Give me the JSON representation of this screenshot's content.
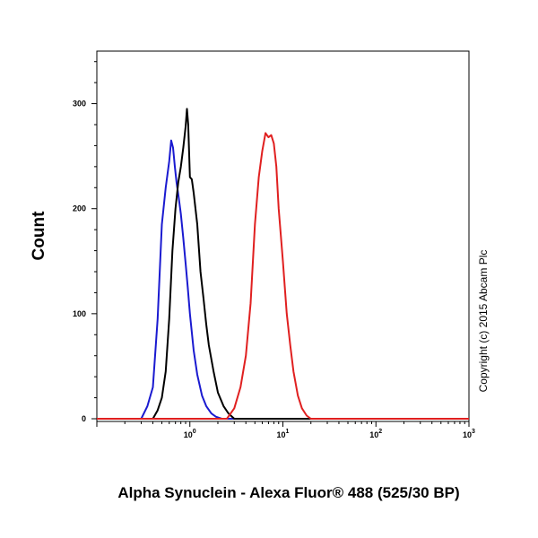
{
  "chart_data": {
    "type": "line",
    "title": "",
    "xlabel": "Alpha Synuclein - Alexa Fluor® 488 (525/30 BP)",
    "ylabel": "Count",
    "x_scale": "log",
    "xlim": [
      0.1,
      1000
    ],
    "ylim": [
      0,
      350
    ],
    "x_ticks": [
      {
        "value": 1,
        "base": "10",
        "exp": "0"
      },
      {
        "value": 10,
        "base": "10",
        "exp": "1"
      },
      {
        "value": 100,
        "base": "10",
        "exp": "2"
      },
      {
        "value": 1000,
        "base": "10",
        "exp": "3"
      }
    ],
    "y_ticks": [
      {
        "value": 0,
        "label": "0"
      },
      {
        "value": 100,
        "label": "100"
      },
      {
        "value": 200,
        "label": "200"
      },
      {
        "value": 300,
        "label": "300"
      }
    ],
    "grid": false,
    "legend": "none",
    "annotation": "Copyright (c) 2015 Abcam Plc",
    "series": [
      {
        "color": "#1a1ad0",
        "x": [
          0.1,
          0.3,
          0.35,
          0.4,
          0.45,
          0.5,
          0.55,
          0.6,
          0.63,
          0.66,
          0.69,
          0.72,
          0.76,
          0.8,
          0.85,
          0.9,
          0.95,
          1.0,
          1.1,
          1.2,
          1.35,
          1.5,
          1.7,
          1.9,
          2.2,
          2.6,
          1000
        ],
        "y": [
          0,
          0,
          12,
          30,
          95,
          185,
          220,
          245,
          265,
          258,
          240,
          225,
          210,
          195,
          172,
          148,
          125,
          100,
          65,
          42,
          22,
          12,
          5,
          2,
          0,
          0,
          0
        ]
      },
      {
        "color": "#000000",
        "x": [
          0.1,
          0.4,
          0.45,
          0.5,
          0.55,
          0.6,
          0.65,
          0.7,
          0.75,
          0.8,
          0.85,
          0.9,
          0.93,
          0.96,
          1.0,
          1.05,
          1.1,
          1.2,
          1.3,
          1.4,
          1.5,
          1.6,
          1.8,
          2.0,
          2.3,
          2.6,
          3.0,
          1000
        ],
        "y": [
          0,
          0,
          8,
          20,
          45,
          95,
          160,
          200,
          225,
          240,
          258,
          278,
          295,
          280,
          230,
          228,
          215,
          185,
          140,
          115,
          90,
          70,
          45,
          25,
          12,
          5,
          0,
          0
        ]
      },
      {
        "color": "#e02020",
        "x": [
          0.1,
          2.5,
          3.0,
          3.5,
          4.0,
          4.5,
          5.0,
          5.5,
          6.0,
          6.5,
          7.0,
          7.5,
          8.0,
          8.5,
          9.0,
          10.0,
          11.0,
          12.0,
          13.0,
          14.5,
          16.0,
          18.0,
          20.0,
          1000
        ],
        "y": [
          0,
          0,
          10,
          30,
          60,
          110,
          185,
          230,
          255,
          272,
          268,
          270,
          262,
          240,
          200,
          150,
          100,
          70,
          45,
          22,
          10,
          3,
          0,
          0
        ]
      }
    ]
  }
}
